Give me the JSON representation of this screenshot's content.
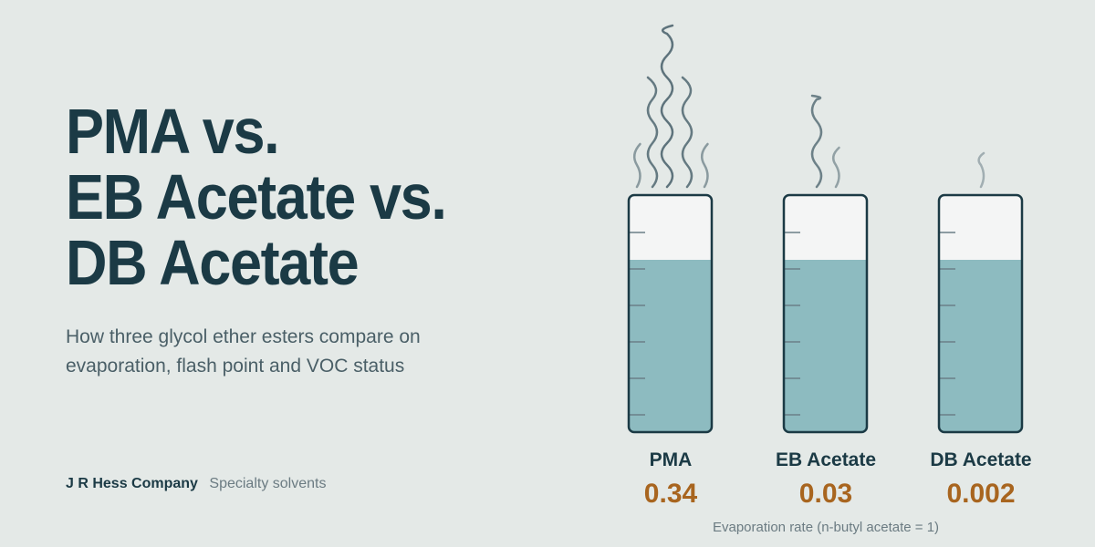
{
  "title_lines": [
    "PMA vs.",
    "EB Acetate vs.",
    "DB Acetate"
  ],
  "subtitle_lines": [
    "How three glycol ether esters compare on",
    "evaporation, flash point and VOC status"
  ],
  "footer": {
    "company": "J R Hess Company",
    "tagline": "Specialty solvents"
  },
  "solvents": [
    {
      "name": "PMA",
      "value_label": "0.34",
      "evaporation_rate": 0.34,
      "fill_fraction": 0.73
    },
    {
      "name": "EB Acetate",
      "value_label": "0.03",
      "evaporation_rate": 0.03,
      "fill_fraction": 0.73
    },
    {
      "name": "DB Acetate",
      "value_label": "0.002",
      "evaporation_rate": 0.002,
      "fill_fraction": 0.73
    }
  ],
  "caption": "Evaporation rate (n-butyl acetate = 1)",
  "colors": {
    "background": "#e4e9e7",
    "title": "#1b3a45",
    "value": "#a8651f",
    "liquid": "#8dbbc0",
    "cylinder_empty": "#f4f5f5",
    "vapor": "#4f6670"
  }
}
